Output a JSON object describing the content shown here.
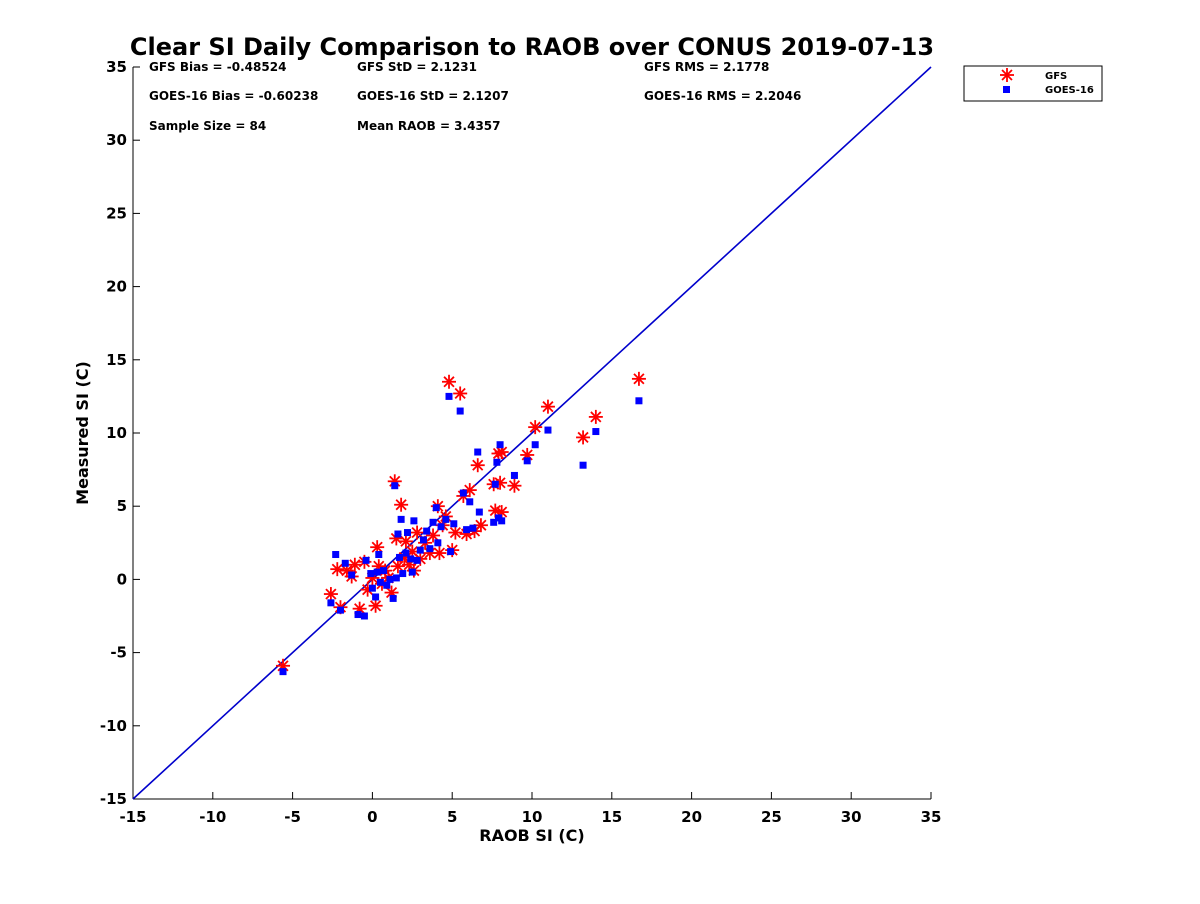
{
  "chart_data": {
    "type": "scatter",
    "title": "Clear SI Daily Comparison to RAOB over CONUS 2019-07-13",
    "xlabel": "RAOB SI (C)",
    "ylabel": "Measured SI (C)",
    "xlim": [
      -15,
      35
    ],
    "ylim": [
      -15,
      35
    ],
    "xticks": [
      "-15",
      "-10",
      "-5",
      "0",
      "5",
      "10",
      "15",
      "20",
      "25",
      "30",
      "35"
    ],
    "yticks": [
      "-15",
      "-10",
      "-5",
      "0",
      "5",
      "10",
      "15",
      "20",
      "25",
      "30",
      "35"
    ],
    "grid": false,
    "legend_position": "outside-top-right",
    "reference_line": {
      "x": [
        -15,
        35
      ],
      "y": [
        -15,
        35
      ],
      "color": "#0000cc"
    },
    "stats": [
      [
        "GFS Bias = -0.48524",
        "GFS StD = 2.1231",
        "GFS RMS = 2.1778"
      ],
      [
        "GOES-16 Bias = -0.60238",
        "GOES-16 StD = 2.1207",
        "GOES-16 RMS = 2.2046"
      ],
      [
        "Sample Size = 84",
        "Mean RAOB = 3.4357",
        ""
      ]
    ],
    "series": [
      {
        "name": "GFS",
        "marker": "asterisk",
        "color": "#ff0000",
        "points": [
          [
            -5.6,
            -5.9
          ],
          [
            -2.6,
            -1.0
          ],
          [
            -2.2,
            0.7
          ],
          [
            -2.0,
            -1.9
          ],
          [
            -1.6,
            0.6
          ],
          [
            -1.3,
            0.2
          ],
          [
            -1.1,
            1.0
          ],
          [
            -0.8,
            -2.0
          ],
          [
            -0.5,
            1.2
          ],
          [
            -0.3,
            -0.7
          ],
          [
            0.0,
            0.1
          ],
          [
            0.2,
            -1.8
          ],
          [
            0.3,
            2.2
          ],
          [
            0.4,
            0.9
          ],
          [
            0.6,
            -0.3
          ],
          [
            0.8,
            0.6
          ],
          [
            1.0,
            0.1
          ],
          [
            1.2,
            -0.9
          ],
          [
            1.4,
            6.7
          ],
          [
            1.5,
            2.8
          ],
          [
            1.6,
            0.9
          ],
          [
            1.8,
            5.1
          ],
          [
            2.0,
            1.5
          ],
          [
            2.1,
            2.6
          ],
          [
            2.3,
            1.0
          ],
          [
            2.5,
            1.9
          ],
          [
            2.6,
            0.6
          ],
          [
            2.8,
            3.2
          ],
          [
            3.0,
            1.4
          ],
          [
            3.3,
            2.5
          ],
          [
            3.6,
            1.8
          ],
          [
            3.8,
            3.0
          ],
          [
            4.1,
            5.0
          ],
          [
            4.2,
            1.8
          ],
          [
            4.4,
            3.7
          ],
          [
            4.6,
            4.3
          ],
          [
            4.8,
            13.5
          ],
          [
            5.0,
            2.0
          ],
          [
            5.2,
            3.2
          ],
          [
            5.5,
            12.7
          ],
          [
            5.7,
            5.7
          ],
          [
            5.9,
            3.1
          ],
          [
            6.1,
            6.1
          ],
          [
            6.4,
            3.3
          ],
          [
            6.6,
            7.8
          ],
          [
            6.8,
            3.7
          ],
          [
            7.6,
            6.5
          ],
          [
            7.7,
            4.7
          ],
          [
            7.9,
            8.6
          ],
          [
            8.0,
            6.6
          ],
          [
            8.1,
            4.6
          ],
          [
            8.1,
            8.7
          ],
          [
            8.9,
            6.4
          ],
          [
            9.7,
            8.5
          ],
          [
            10.2,
            10.4
          ],
          [
            11.0,
            11.8
          ],
          [
            13.2,
            9.7
          ],
          [
            14.0,
            11.1
          ],
          [
            16.7,
            13.7
          ]
        ]
      },
      {
        "name": "GOES-16",
        "marker": "square",
        "color": "#0000ff",
        "points": [
          [
            -5.6,
            -6.3
          ],
          [
            -2.6,
            -1.6
          ],
          [
            -2.3,
            1.7
          ],
          [
            -2.0,
            -2.1
          ],
          [
            -1.7,
            1.1
          ],
          [
            -1.3,
            0.3
          ],
          [
            -0.9,
            -2.4
          ],
          [
            -0.5,
            -2.5
          ],
          [
            -0.4,
            1.3
          ],
          [
            -0.1,
            0.4
          ],
          [
            0.0,
            -0.6
          ],
          [
            0.2,
            -1.2
          ],
          [
            0.3,
            0.5
          ],
          [
            0.4,
            1.7
          ],
          [
            0.5,
            -0.2
          ],
          [
            0.7,
            0.6
          ],
          [
            0.9,
            -0.4
          ],
          [
            1.1,
            0.0
          ],
          [
            1.3,
            -1.3
          ],
          [
            1.4,
            6.4
          ],
          [
            1.5,
            0.1
          ],
          [
            1.6,
            3.1
          ],
          [
            1.7,
            1.5
          ],
          [
            1.8,
            4.1
          ],
          [
            1.9,
            0.4
          ],
          [
            2.1,
            1.8
          ],
          [
            2.2,
            3.2
          ],
          [
            2.4,
            1.4
          ],
          [
            2.5,
            0.5
          ],
          [
            2.6,
            4.0
          ],
          [
            2.8,
            1.3
          ],
          [
            3.0,
            2.0
          ],
          [
            3.2,
            2.7
          ],
          [
            3.4,
            3.3
          ],
          [
            3.6,
            2.1
          ],
          [
            3.8,
            3.9
          ],
          [
            4.0,
            4.9
          ],
          [
            4.1,
            2.5
          ],
          [
            4.3,
            3.6
          ],
          [
            4.6,
            4.1
          ],
          [
            4.8,
            12.5
          ],
          [
            4.9,
            1.9
          ],
          [
            5.1,
            3.8
          ],
          [
            5.5,
            11.5
          ],
          [
            5.7,
            5.9
          ],
          [
            5.9,
            3.4
          ],
          [
            6.1,
            5.3
          ],
          [
            6.3,
            3.5
          ],
          [
            6.6,
            8.7
          ],
          [
            6.7,
            4.6
          ],
          [
            7.6,
            3.9
          ],
          [
            7.7,
            6.5
          ],
          [
            7.8,
            8.0
          ],
          [
            7.9,
            4.2
          ],
          [
            8.0,
            9.2
          ],
          [
            8.1,
            4.0
          ],
          [
            8.9,
            7.1
          ],
          [
            9.7,
            8.1
          ],
          [
            10.2,
            9.2
          ],
          [
            11.0,
            10.2
          ],
          [
            13.2,
            7.8
          ],
          [
            14.0,
            10.1
          ],
          [
            16.7,
            12.2
          ]
        ]
      }
    ]
  }
}
